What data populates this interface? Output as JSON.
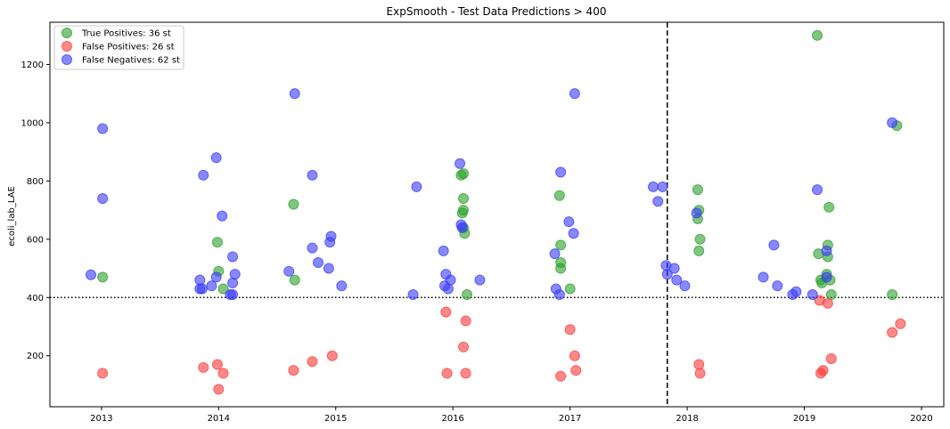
{
  "chart_data": {
    "type": "scatter",
    "title": "ExpSmooth - Test Data Predictions > 400",
    "xlabel": "",
    "ylabel": "ecoli_lab_LAE",
    "xlim": [
      2012.56,
      2020.19
    ],
    "ylim": [
      25,
      1345
    ],
    "x_ticks": [
      "2013",
      "2014",
      "2015",
      "2016",
      "2017",
      "2018",
      "2019",
      "2020"
    ],
    "y_ticks": [
      200,
      400,
      600,
      800,
      1000,
      1200
    ],
    "threshold": 400,
    "vertical_line_x": 2017.83,
    "grid": false,
    "legend_position": "top-left",
    "series": [
      {
        "name": "True Positives: 36 st",
        "color": "#2ca02c",
        "points": [
          [
            2013.01,
            470
          ],
          [
            2013.99,
            590
          ],
          [
            2014.0,
            490
          ],
          [
            2014.04,
            430
          ],
          [
            2014.64,
            720
          ],
          [
            2014.65,
            460
          ],
          [
            2016.07,
            820
          ],
          [
            2016.09,
            825
          ],
          [
            2016.09,
            740
          ],
          [
            2016.08,
            690
          ],
          [
            2016.09,
            700
          ],
          [
            2016.09,
            640
          ],
          [
            2016.1,
            620
          ],
          [
            2016.12,
            410
          ],
          [
            2016.91,
            750
          ],
          [
            2016.92,
            580
          ],
          [
            2016.92,
            520
          ],
          [
            2016.92,
            500
          ],
          [
            2017.0,
            430
          ],
          [
            2018.09,
            770
          ],
          [
            2018.1,
            700
          ],
          [
            2018.09,
            670
          ],
          [
            2018.11,
            600
          ],
          [
            2018.1,
            560
          ],
          [
            2019.11,
            1300
          ],
          [
            2019.12,
            550
          ],
          [
            2019.14,
            460
          ],
          [
            2019.15,
            450
          ],
          [
            2019.19,
            480
          ],
          [
            2019.2,
            580
          ],
          [
            2019.2,
            540
          ],
          [
            2019.21,
            710
          ],
          [
            2019.22,
            460
          ],
          [
            2019.23,
            410
          ],
          [
            2019.75,
            410
          ],
          [
            2019.79,
            990
          ]
        ]
      },
      {
        "name": "False Positives: 26 st",
        "color": "#ff3b3b",
        "points": [
          [
            2013.01,
            140
          ],
          [
            2013.87,
            160
          ],
          [
            2013.99,
            170
          ],
          [
            2014.0,
            85
          ],
          [
            2014.04,
            140
          ],
          [
            2014.64,
            150
          ],
          [
            2014.8,
            180
          ],
          [
            2014.97,
            200
          ],
          [
            2015.94,
            350
          ],
          [
            2015.95,
            140
          ],
          [
            2016.09,
            230
          ],
          [
            2016.11,
            320
          ],
          [
            2016.11,
            140
          ],
          [
            2016.92,
            130
          ],
          [
            2017.0,
            290
          ],
          [
            2017.04,
            200
          ],
          [
            2017.05,
            150
          ],
          [
            2018.1,
            170
          ],
          [
            2018.11,
            140
          ],
          [
            2019.13,
            390
          ],
          [
            2019.14,
            140
          ],
          [
            2019.16,
            150
          ],
          [
            2019.2,
            380
          ],
          [
            2019.23,
            190
          ],
          [
            2019.75,
            280
          ],
          [
            2019.82,
            310
          ]
        ]
      },
      {
        "name": "False Negatives: 62 st",
        "color": "#3b3bff",
        "points": [
          [
            2012.91,
            478
          ],
          [
            2013.01,
            980
          ],
          [
            2013.01,
            740
          ],
          [
            2013.84,
            460
          ],
          [
            2013.84,
            430
          ],
          [
            2013.86,
            430
          ],
          [
            2013.87,
            820
          ],
          [
            2013.94,
            440
          ],
          [
            2013.98,
            880
          ],
          [
            2013.98,
            470
          ],
          [
            2014.03,
            680
          ],
          [
            2014.1,
            410
          ],
          [
            2014.12,
            410
          ],
          [
            2014.12,
            540
          ],
          [
            2014.12,
            450
          ],
          [
            2014.14,
            480
          ],
          [
            2014.6,
            490
          ],
          [
            2014.65,
            1100
          ],
          [
            2014.8,
            820
          ],
          [
            2014.8,
            570
          ],
          [
            2014.85,
            520
          ],
          [
            2014.94,
            500
          ],
          [
            2014.95,
            590
          ],
          [
            2014.96,
            610
          ],
          [
            2015.05,
            440
          ],
          [
            2015.66,
            410
          ],
          [
            2015.69,
            780
          ],
          [
            2015.92,
            560
          ],
          [
            2015.93,
            440
          ],
          [
            2015.94,
            480
          ],
          [
            2015.96,
            430
          ],
          [
            2015.98,
            460
          ],
          [
            2016.06,
            860
          ],
          [
            2016.07,
            650
          ],
          [
            2016.08,
            640
          ],
          [
            2016.23,
            460
          ],
          [
            2016.87,
            550
          ],
          [
            2016.88,
            430
          ],
          [
            2016.91,
            410
          ],
          [
            2016.92,
            830
          ],
          [
            2016.99,
            660
          ],
          [
            2017.03,
            620
          ],
          [
            2017.04,
            1100
          ],
          [
            2017.71,
            780
          ],
          [
            2017.75,
            730
          ],
          [
            2017.79,
            780
          ],
          [
            2017.82,
            510
          ],
          [
            2017.83,
            480
          ],
          [
            2017.89,
            500
          ],
          [
            2017.91,
            460
          ],
          [
            2017.98,
            440
          ],
          [
            2018.08,
            690
          ],
          [
            2018.65,
            470
          ],
          [
            2018.74,
            580
          ],
          [
            2018.77,
            440
          ],
          [
            2018.9,
            410
          ],
          [
            2018.93,
            420
          ],
          [
            2019.07,
            410
          ],
          [
            2019.11,
            770
          ],
          [
            2019.19,
            470
          ],
          [
            2019.19,
            560
          ],
          [
            2019.75,
            1000
          ]
        ]
      }
    ]
  }
}
